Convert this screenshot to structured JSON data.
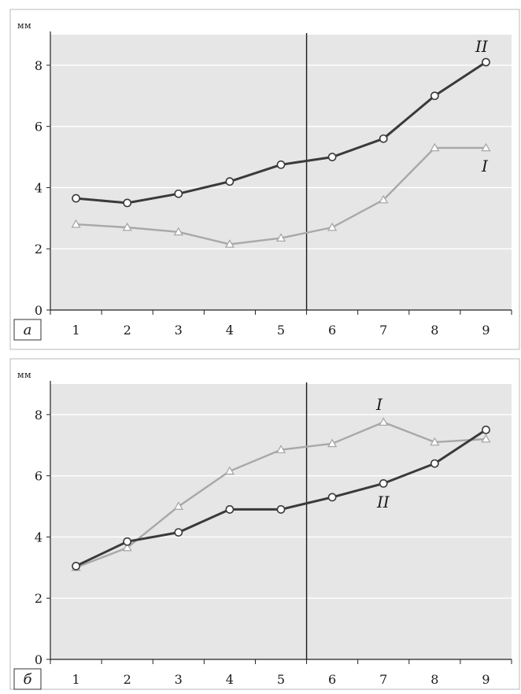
{
  "chart_data": [
    {
      "type": "line",
      "panel_label": "а",
      "ylabel": "мм",
      "categories": [
        "1",
        "2",
        "3",
        "4",
        "5",
        "6",
        "7",
        "8",
        "9"
      ],
      "yticks": [
        "0",
        "2",
        "4",
        "6",
        "8"
      ],
      "ylim": [
        0,
        9
      ],
      "divider_between": [
        "5",
        "6"
      ],
      "grid": true,
      "series": [
        {
          "name": "II",
          "marker": "circle",
          "color": "#3a3a3a",
          "values": [
            3.65,
            3.5,
            3.8,
            4.2,
            4.75,
            5.0,
            5.6,
            7.0,
            8.1
          ]
        },
        {
          "name": "I",
          "marker": "triangle",
          "color": "#a8a8a8",
          "values": [
            2.8,
            2.7,
            2.55,
            2.15,
            2.35,
            2.7,
            3.6,
            5.3,
            5.3
          ]
        }
      ]
    },
    {
      "type": "line",
      "panel_label": "б",
      "ylabel": "мм",
      "categories": [
        "1",
        "2",
        "3",
        "4",
        "5",
        "6",
        "7",
        "8",
        "9"
      ],
      "yticks": [
        "0",
        "2",
        "4",
        "6",
        "8"
      ],
      "ylim": [
        0,
        9
      ],
      "divider_between": [
        "5",
        "6"
      ],
      "grid": true,
      "series": [
        {
          "name": "I",
          "marker": "triangle",
          "color": "#a8a8a8",
          "values": [
            3.0,
            3.65,
            5.0,
            6.15,
            6.85,
            7.05,
            7.75,
            7.1,
            7.2
          ]
        },
        {
          "name": "II",
          "marker": "circle",
          "color": "#3a3a3a",
          "values": [
            3.05,
            3.85,
            4.15,
            4.9,
            4.9,
            5.3,
            5.75,
            6.4,
            7.5
          ]
        }
      ]
    }
  ]
}
